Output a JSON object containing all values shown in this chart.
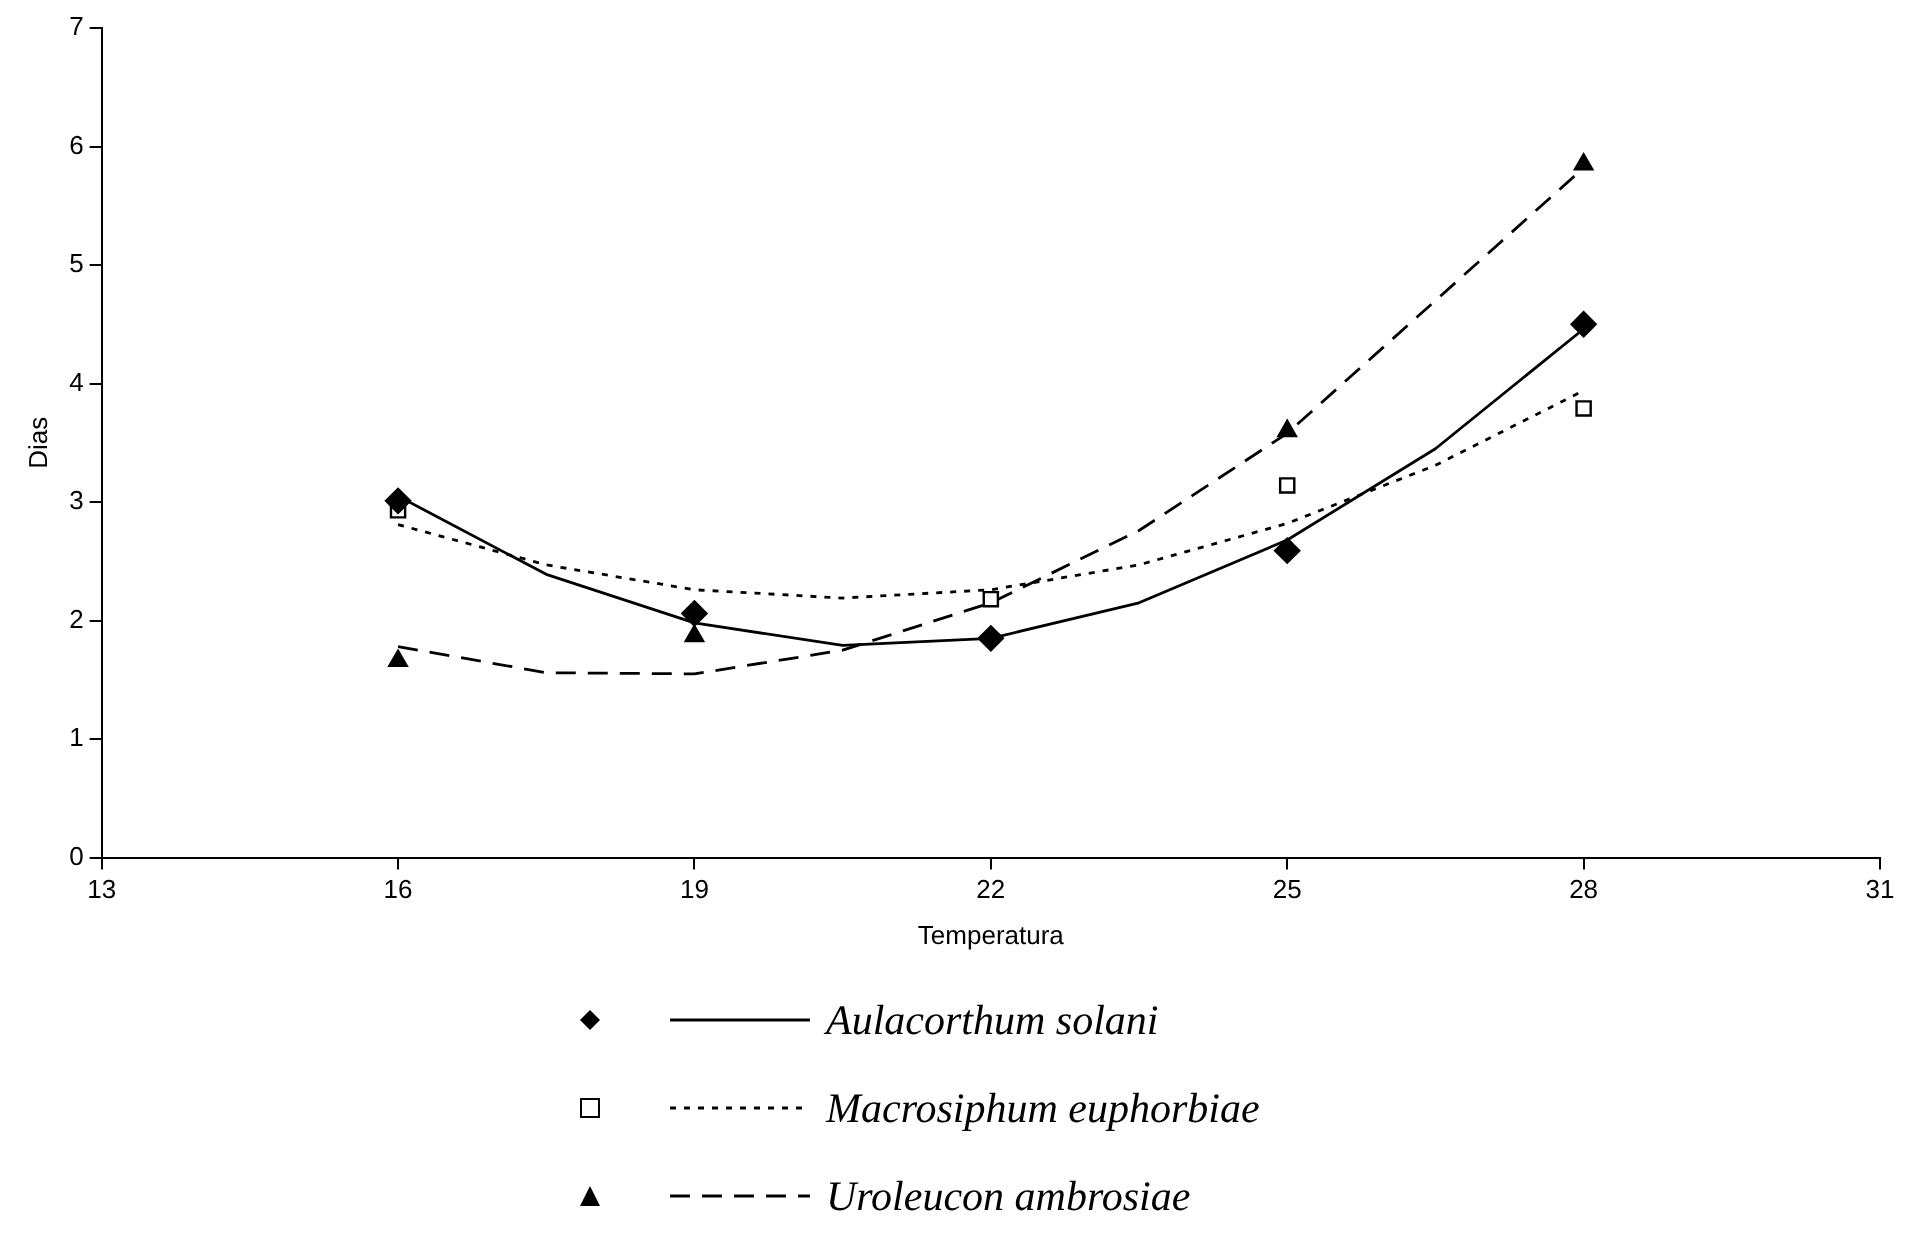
{
  "chart_data": {
    "type": "scatter",
    "xlabel": "Temperatura",
    "ylabel": "Dias",
    "xlim": [
      13,
      31
    ],
    "xticks": [
      13,
      16,
      19,
      22,
      25,
      28,
      31
    ],
    "ylim": [
      0,
      7
    ],
    "yticks": [
      0,
      1,
      2,
      3,
      4,
      5,
      6,
      7
    ],
    "grid": false,
    "legend": "bottom",
    "series": [
      {
        "name": "Aulacorthum solani",
        "marker": "diamond",
        "color": "#000000",
        "x": [
          16,
          19,
          22,
          25,
          28
        ],
        "values": [
          3.01,
          2.06,
          1.85,
          2.59,
          4.5
        ]
      },
      {
        "name": "Macrosiphum euphorbiae",
        "marker": "square",
        "color": "#000000",
        "x": [
          16,
          19,
          22,
          25,
          28
        ],
        "values": [
          2.93,
          null,
          2.18,
          3.14,
          3.79
        ]
      },
      {
        "name": "Uroleucon ambrosiae",
        "marker": "triangle",
        "color": "#000000",
        "x": [
          16,
          19,
          22,
          25,
          28
        ],
        "values": [
          1.66,
          1.87,
          null,
          3.6,
          5.85
        ]
      },
      {
        "type": "line",
        "line_style": "solid",
        "marker": "none",
        "color": "#000000",
        "x": [
          16,
          17.5,
          19,
          20.5,
          22,
          23.5,
          25,
          26.5,
          28
        ],
        "values": [
          3.05,
          2.39,
          1.98,
          1.79,
          1.85,
          2.15,
          2.68,
          3.45,
          4.46
        ]
      },
      {
        "type": "line",
        "line_style": "dotted",
        "marker": "none",
        "color": "#000000",
        "x": [
          16,
          17.5,
          19,
          20.5,
          22,
          23.5,
          25,
          26.5,
          28
        ],
        "values": [
          2.81,
          2.47,
          2.26,
          2.19,
          2.26,
          2.47,
          2.82,
          3.31,
          3.94
        ]
      },
      {
        "type": "line",
        "line_style": "dashed",
        "marker": "none",
        "color": "#000000",
        "x": [
          16,
          17.5,
          19,
          20.5,
          22,
          23.5,
          25,
          26.5,
          28
        ],
        "values": [
          1.78,
          1.56,
          1.55,
          1.75,
          2.15,
          2.76,
          3.58,
          4.7,
          5.82
        ]
      }
    ]
  }
}
